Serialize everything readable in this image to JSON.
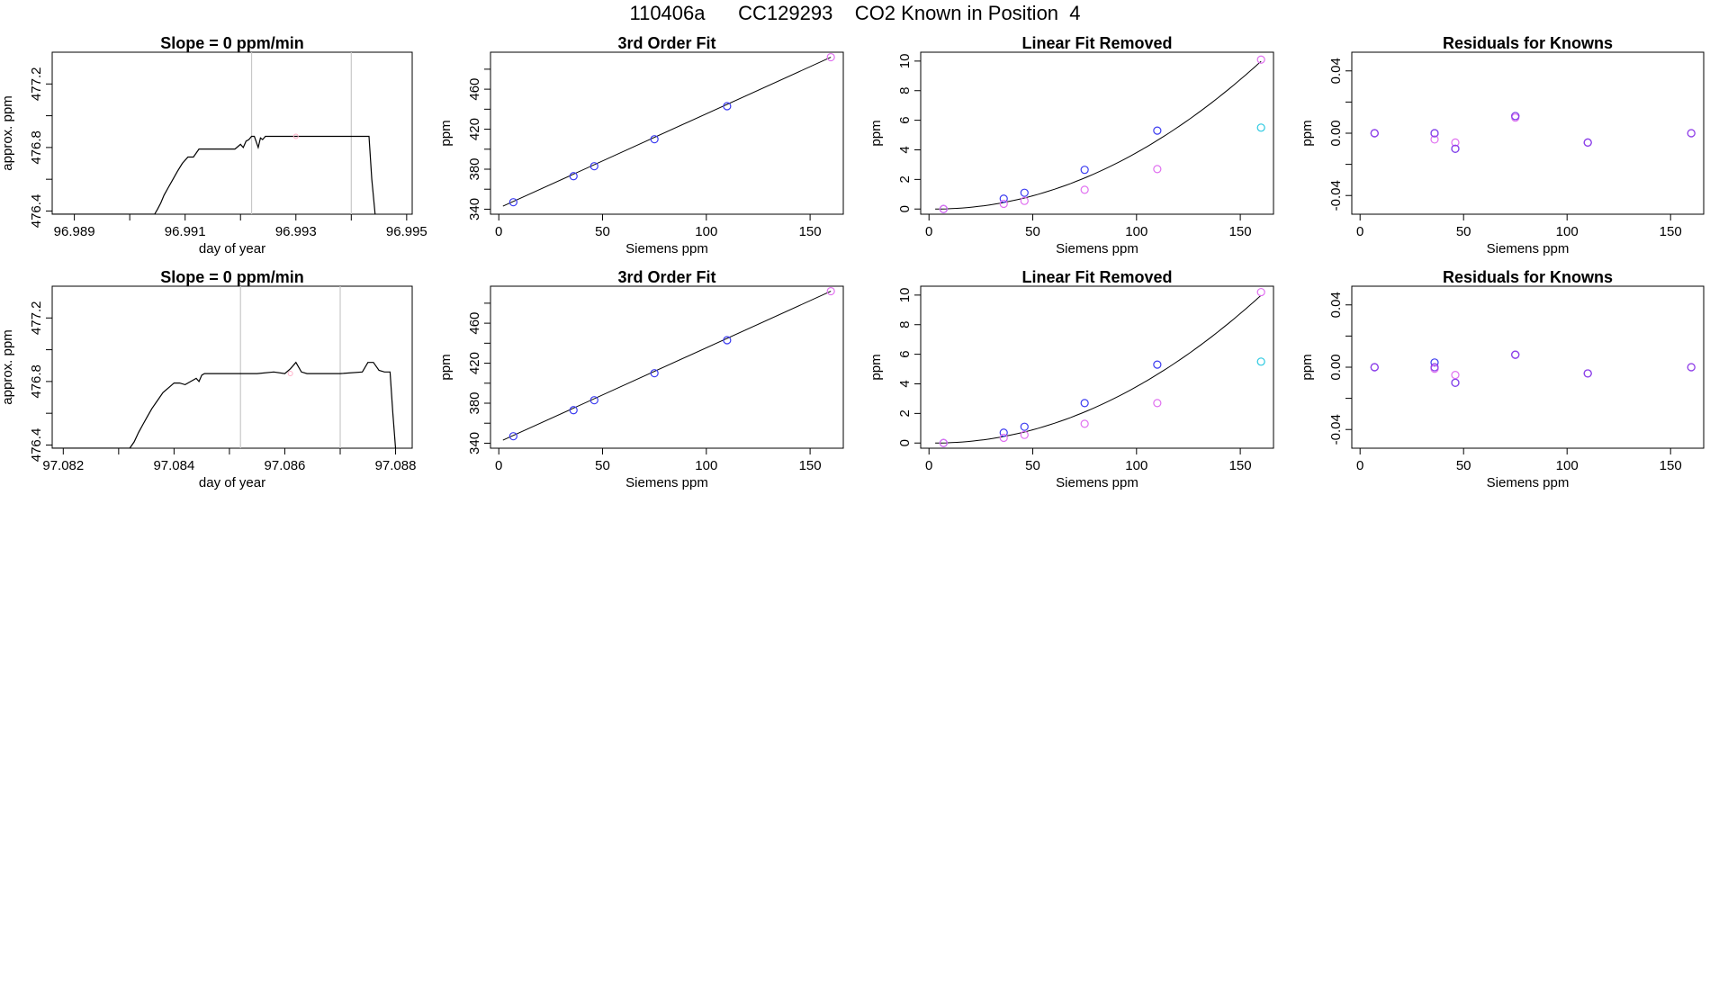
{
  "figure": {
    "title": "110406a      CC129293    CO2 Known in Position  4"
  },
  "colors": {
    "blue": "#3a3af0",
    "magenta": "#e070f0",
    "purple": "#8a40e8",
    "cyan": "#28c8e0",
    "pink": "#ffb0c8",
    "line": "#000000",
    "vline": "#c8c8c8"
  },
  "chart_data": [
    {
      "type": "line",
      "title": "Slope =  0  ppm/min",
      "xlabel": "day of year",
      "ylabel": "approx. ppm",
      "xlim": [
        96.9886,
        96.9951
      ],
      "ylim": [
        476.38,
        477.4
      ],
      "xticks": [
        "96.989",
        "96.990",
        "96.991",
        "96.992",
        "96.993",
        "96.994",
        "96.995"
      ],
      "xtick_labels": [
        "96.989",
        "",
        "96.991",
        "",
        "96.993",
        "",
        "96.995"
      ],
      "yticks": [
        476.4,
        476.6,
        476.8,
        477.0,
        477.2
      ],
      "ytick_labels": [
        "476.4",
        "",
        "476.8",
        "",
        "477.2"
      ],
      "vlines": [
        96.9922,
        96.994
      ],
      "x": [
        96.9886,
        96.99045,
        96.9905,
        96.99056,
        96.99062,
        96.9907,
        96.99078,
        96.99086,
        96.99095,
        96.99105,
        96.99115,
        96.99125,
        96.99135,
        96.99165,
        96.9919,
        96.992,
        96.99205,
        96.9921,
        96.99215,
        96.9922,
        96.99225,
        96.99232,
        96.99236,
        96.9924,
        96.99245,
        96.9925,
        96.993,
        96.9935,
        96.994,
        96.99432,
        96.99437,
        96.99443
      ],
      "y": [
        476.38,
        476.38,
        476.41,
        476.45,
        476.5,
        476.55,
        476.6,
        476.65,
        476.7,
        476.74,
        476.74,
        476.79,
        476.79,
        476.79,
        476.79,
        476.82,
        476.8,
        476.84,
        476.85,
        476.87,
        476.87,
        476.8,
        476.86,
        476.85,
        476.87,
        476.87,
        476.87,
        476.87,
        476.87,
        476.87,
        476.6,
        476.38
      ],
      "points": [
        {
          "x": 96.993,
          "y": 476.87,
          "color": "pink"
        }
      ]
    },
    {
      "type": "scatter",
      "title": "3rd Order Fit",
      "xlabel": "Siemens ppm",
      "ylabel": "ppm",
      "xlim": [
        -4,
        166
      ],
      "ylim": [
        335,
        497
      ],
      "xticks": [
        0,
        50,
        100,
        150
      ],
      "xtick_labels": [
        "0",
        "50",
        "100",
        "150"
      ],
      "yticks": [
        340,
        360,
        380,
        400,
        420,
        440,
        460,
        480
      ],
      "ytick_labels": [
        "340",
        "",
        "380",
        "",
        "420",
        "",
        "460",
        ""
      ],
      "curve": {
        "x": [
          2,
          160
        ],
        "y": [
          343,
          492
        ]
      },
      "series": [
        {
          "color": "blue",
          "x": [
            7,
            36,
            46,
            75,
            110
          ],
          "y": [
            347,
            373,
            383,
            410,
            443
          ]
        },
        {
          "color": "magenta",
          "x": [
            160
          ],
          "y": [
            492
          ]
        }
      ]
    },
    {
      "type": "scatter",
      "title": "Linear Fit Removed",
      "xlabel": "Siemens ppm",
      "ylabel": "ppm",
      "xlim": [
        -4,
        166
      ],
      "ylim": [
        -0.35,
        10.6
      ],
      "xticks": [
        0,
        50,
        100,
        150
      ],
      "xtick_labels": [
        "0",
        "50",
        "100",
        "150"
      ],
      "yticks": [
        0,
        2,
        4,
        6,
        8,
        10
      ],
      "ytick_labels": [
        "0",
        "2",
        "4",
        "6",
        "8",
        "10"
      ],
      "curve": {
        "type": "quadratic",
        "x0": 3,
        "x1": 160,
        "a": 0.000405,
        "x_ref": 3
      },
      "series": [
        {
          "color": "blue",
          "x": [
            7,
            36,
            46,
            75,
            110
          ],
          "y": [
            0.0,
            0.7,
            1.1,
            2.65,
            5.3
          ]
        },
        {
          "color": "magenta",
          "x": [
            7,
            36,
            46,
            75,
            110,
            160
          ],
          "y": [
            0.0,
            0.35,
            0.55,
            1.3,
            2.7,
            10.1
          ]
        },
        {
          "color": "cyan",
          "x": [
            160
          ],
          "y": [
            5.5
          ]
        }
      ]
    },
    {
      "type": "scatter",
      "title": "Residuals for Knowns",
      "xlabel": "Siemens ppm",
      "ylabel": "ppm",
      "xlim": [
        -4,
        166
      ],
      "ylim": [
        -0.052,
        0.052
      ],
      "xticks": [
        0,
        50,
        100,
        150
      ],
      "xtick_labels": [
        "0",
        "50",
        "100",
        "150"
      ],
      "yticks": [
        -0.04,
        -0.02,
        0.0,
        0.02,
        0.04
      ],
      "ytick_labels": [
        "-0.04",
        "",
        "0.00",
        "",
        "0.04"
      ],
      "series": [
        {
          "color": "blue",
          "x": [
            7,
            36,
            46,
            75,
            110
          ],
          "y": [
            0.0,
            0.0,
            -0.01,
            0.011,
            -0.006
          ]
        },
        {
          "color": "magenta",
          "x": [
            7,
            36,
            46,
            75,
            110,
            160
          ],
          "y": [
            0.0,
            -0.004,
            -0.006,
            0.01,
            -0.006,
            0.0
          ]
        },
        {
          "color": "purple",
          "x": [
            7,
            36,
            46,
            75,
            110,
            160
          ],
          "y": [
            0.0,
            0.0,
            -0.01,
            0.011,
            -0.006,
            0.0
          ]
        }
      ]
    },
    {
      "type": "line",
      "title": "Slope =  0  ppm/min",
      "xlabel": "day of year",
      "ylabel": "approx. ppm",
      "xlim": [
        97.0818,
        97.0883
      ],
      "ylim": [
        476.38,
        477.4
      ],
      "xticks": [
        "97.082",
        "97.083",
        "97.084",
        "97.085",
        "97.086",
        "97.087",
        "97.088"
      ],
      "xtick_labels": [
        "97.082",
        "",
        "97.084",
        "",
        "97.086",
        "",
        "97.088"
      ],
      "yticks": [
        476.4,
        476.6,
        476.8,
        477.0,
        477.2
      ],
      "ytick_labels": [
        "476.4",
        "",
        "476.8",
        "",
        "477.2"
      ],
      "vlines": [
        97.0852,
        97.087
      ],
      "x": [
        97.0818,
        97.0832,
        97.08328,
        97.08336,
        97.08344,
        97.08352,
        97.0836,
        97.0837,
        97.0838,
        97.0839,
        97.084,
        97.0841,
        97.0842,
        97.0844,
        97.08445,
        97.0845,
        97.08455,
        97.0846,
        97.0847,
        97.085,
        97.0855,
        97.0858,
        97.086,
        97.0861,
        97.0862,
        97.0863,
        97.0864,
        97.087,
        97.0874,
        97.0875,
        97.0876,
        97.0877,
        97.0878,
        97.0879,
        97.08795,
        97.088
      ],
      "y": [
        476.38,
        476.38,
        476.42,
        476.48,
        476.53,
        476.58,
        476.63,
        476.68,
        476.73,
        476.76,
        476.79,
        476.79,
        476.78,
        476.82,
        476.8,
        476.84,
        476.85,
        476.85,
        476.85,
        476.85,
        476.85,
        476.86,
        476.85,
        476.88,
        476.92,
        476.86,
        476.85,
        476.85,
        476.86,
        476.92,
        476.92,
        476.87,
        476.86,
        476.86,
        476.6,
        476.38
      ],
      "points": [
        {
          "x": 97.0861,
          "y": 476.85,
          "color": "pink"
        }
      ]
    },
    {
      "type": "scatter",
      "title": "3rd Order Fit",
      "xlabel": "Siemens ppm",
      "ylabel": "ppm",
      "xlim": [
        -4,
        166
      ],
      "ylim": [
        335,
        497
      ],
      "xticks": [
        0,
        50,
        100,
        150
      ],
      "xtick_labels": [
        "0",
        "50",
        "100",
        "150"
      ],
      "yticks": [
        340,
        360,
        380,
        400,
        420,
        440,
        460,
        480
      ],
      "ytick_labels": [
        "340",
        "",
        "380",
        "",
        "420",
        "",
        "460",
        ""
      ],
      "curve": {
        "x": [
          2,
          160
        ],
        "y": [
          343,
          492
        ]
      },
      "series": [
        {
          "color": "blue",
          "x": [
            7,
            36,
            46,
            75,
            110
          ],
          "y": [
            347,
            373,
            383,
            410,
            443
          ]
        },
        {
          "color": "magenta",
          "x": [
            160
          ],
          "y": [
            492
          ]
        }
      ]
    },
    {
      "type": "scatter",
      "title": "Linear Fit Removed",
      "xlabel": "Siemens ppm",
      "ylabel": "ppm",
      "xlim": [
        -4,
        166
      ],
      "ylim": [
        -0.35,
        10.6
      ],
      "xticks": [
        0,
        50,
        100,
        150
      ],
      "xtick_labels": [
        "0",
        "50",
        "100",
        "150"
      ],
      "yticks": [
        0,
        2,
        4,
        6,
        8,
        10
      ],
      "ytick_labels": [
        "0",
        "2",
        "4",
        "6",
        "8",
        "10"
      ],
      "curve": {
        "type": "quadratic",
        "x0": 3,
        "x1": 160,
        "a": 0.000405,
        "x_ref": 3
      },
      "series": [
        {
          "color": "blue",
          "x": [
            7,
            36,
            46,
            75,
            110
          ],
          "y": [
            0.0,
            0.7,
            1.1,
            2.7,
            5.3
          ]
        },
        {
          "color": "magenta",
          "x": [
            7,
            36,
            46,
            75,
            110,
            160
          ],
          "y": [
            0.0,
            0.35,
            0.55,
            1.3,
            2.7,
            10.2
          ]
        },
        {
          "color": "cyan",
          "x": [
            160
          ],
          "y": [
            5.5
          ]
        }
      ]
    },
    {
      "type": "scatter",
      "title": "Residuals for Knowns",
      "xlabel": "Siemens ppm",
      "ylabel": "ppm",
      "xlim": [
        -4,
        166
      ],
      "ylim": [
        -0.052,
        0.052
      ],
      "xticks": [
        0,
        50,
        100,
        150
      ],
      "xtick_labels": [
        "0",
        "50",
        "100",
        "150"
      ],
      "yticks": [
        -0.04,
        -0.02,
        0.0,
        0.02,
        0.04
      ],
      "ytick_labels": [
        "-0.04",
        "",
        "0.00",
        "",
        "0.04"
      ],
      "series": [
        {
          "color": "blue",
          "x": [
            7,
            36,
            46,
            75,
            110
          ],
          "y": [
            0.0,
            0.003,
            -0.01,
            0.008,
            -0.004
          ]
        },
        {
          "color": "magenta",
          "x": [
            7,
            36,
            46,
            75,
            110,
            160
          ],
          "y": [
            0.0,
            -0.001,
            -0.005,
            0.008,
            -0.004,
            0.0
          ]
        },
        {
          "color": "purple",
          "x": [
            7,
            36,
            46,
            75,
            110,
            160
          ],
          "y": [
            0.0,
            0.0,
            -0.01,
            0.008,
            -0.004,
            0.0
          ]
        }
      ]
    }
  ]
}
